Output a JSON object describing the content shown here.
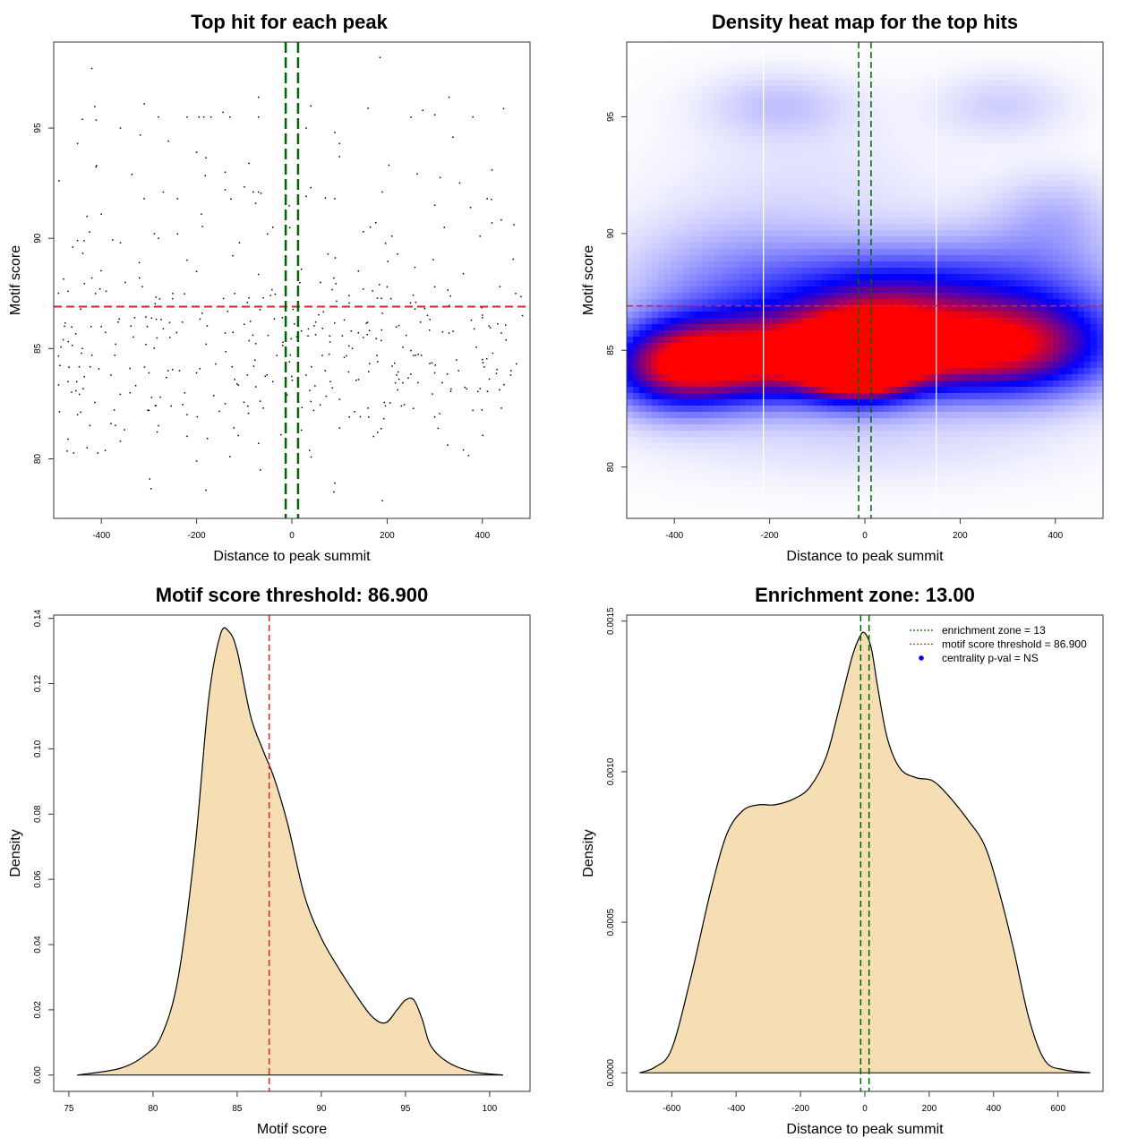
{
  "colors": {
    "threshold": "#dd2222",
    "zone": "#006400",
    "fill": "#f5deb3",
    "outline": "#000000",
    "heat_low": "#ffffff",
    "heat_mid": "#0000ff",
    "heat_high": "#ff0000"
  },
  "chart_data": [
    {
      "type": "scatter",
      "title": "Top hit for each peak",
      "xlabel": "Distance to peak summit",
      "ylabel": "Motif score",
      "xlim": [
        -500,
        500
      ],
      "ylim": [
        77.3,
        98.9
      ],
      "xticks": [
        "-400",
        "-200",
        "0",
        "200",
        "400"
      ],
      "yticks": [
        "80",
        "85",
        "90",
        "95"
      ],
      "hline": 86.9,
      "vlines": [
        -13,
        13
      ],
      "n_points": 470,
      "seed": 7,
      "points": [
        [
          -420,
          97.7
        ],
        [
          185,
          98.2
        ],
        [
          -310,
          96.1
        ],
        [
          -70,
          96.4
        ],
        [
          330,
          96.4
        ],
        [
          -440,
          95.4
        ],
        [
          -280,
          95.5
        ],
        [
          -220,
          95.5
        ],
        [
          -195,
          95.5
        ],
        [
          -185,
          95.5
        ],
        [
          -170,
          95.5
        ],
        [
          -130,
          95.5
        ],
        [
          -70,
          95.5
        ],
        [
          40,
          96.0
        ],
        [
          160,
          95.9
        ],
        [
          250,
          95.5
        ],
        [
          275,
          95.8
        ],
        [
          300,
          95.6
        ],
        [
          380,
          95.5
        ],
        [
          30,
          95.0
        ],
        [
          -450,
          94.3
        ],
        [
          -360,
          95.0
        ],
        [
          90,
          94.8
        ],
        [
          100,
          94.3
        ],
        [
          -410,
          93.3
        ],
        [
          -200,
          93.9
        ],
        [
          -140,
          93.0
        ],
        [
          -90,
          93.4
        ],
        [
          100,
          93.7
        ],
        [
          420,
          93.1
        ],
        [
          -270,
          92.1
        ],
        [
          -140,
          92.2
        ],
        [
          -70,
          92.1
        ],
        [
          40,
          92.3
        ],
        [
          190,
          92.1
        ],
        [
          -430,
          91.0
        ],
        [
          -400,
          91.1
        ],
        [
          -310,
          91.8
        ],
        [
          -240,
          91.8
        ],
        [
          -190,
          91.1
        ],
        [
          30,
          91.9
        ],
        [
          90,
          91.8
        ],
        [
          300,
          91.5
        ],
        [
          375,
          91.4
        ],
        [
          410,
          91.8
        ],
        [
          -460,
          89.6
        ],
        [
          -450,
          89.9
        ],
        [
          -360,
          89.8
        ],
        [
          -280,
          90.0
        ],
        [
          -240,
          90.2
        ],
        [
          -110,
          89.8
        ],
        [
          -40,
          90.5
        ],
        [
          150,
          90.3
        ],
        [
          210,
          90.1
        ],
        [
          320,
          90.5
        ],
        [
          395,
          90.1
        ],
        [
          420,
          90.7
        ],
        [
          -470,
          87.6
        ],
        [
          -420,
          88.2
        ],
        [
          -390,
          87.6
        ],
        [
          -350,
          88.0
        ],
        [
          -320,
          88.2
        ],
        [
          -250,
          87.5
        ],
        [
          -200,
          88.5
        ],
        [
          -120,
          87.5
        ],
        [
          -90,
          87.3
        ],
        [
          -60,
          87.3
        ],
        [
          20,
          88.6
        ],
        [
          60,
          88.0
        ],
        [
          120,
          87.4
        ],
        [
          150,
          87.7
        ],
        [
          200,
          87.8
        ],
        [
          260,
          87.1
        ],
        [
          300,
          87.8
        ],
        [
          360,
          88.4
        ],
        [
          470,
          87.5
        ],
        [
          -480,
          85.4
        ],
        [
          -440,
          85.0
        ],
        [
          -400,
          86.0
        ],
        [
          -370,
          85.2
        ],
        [
          -330,
          86.4
        ],
        [
          -270,
          85.9
        ],
        [
          -230,
          86.2
        ],
        [
          -180,
          85.2
        ],
        [
          -140,
          85.7
        ],
        [
          -100,
          86.1
        ],
        [
          -50,
          85.6
        ],
        [
          -20,
          86.4
        ],
        [
          20,
          85.8
        ],
        [
          50,
          86.2
        ],
        [
          80,
          85.3
        ],
        [
          110,
          86.3
        ],
        [
          150,
          85.5
        ],
        [
          190,
          86.6
        ],
        [
          240,
          85.6
        ],
        [
          270,
          86.2
        ],
        [
          330,
          85.7
        ],
        [
          400,
          86.4
        ],
        [
          440,
          85.7
        ],
        [
          -470,
          83.5
        ],
        [
          -420,
          84.7
        ],
        [
          -380,
          83.8
        ],
        [
          -340,
          84.1
        ],
        [
          -300,
          83.9
        ],
        [
          -260,
          84.0
        ],
        [
          -200,
          83.9
        ],
        [
          -160,
          84.3
        ],
        [
          -120,
          83.6
        ],
        [
          -80,
          84.2
        ],
        [
          -40,
          83.5
        ],
        [
          -5,
          84.4
        ],
        [
          30,
          83.8
        ],
        [
          70,
          84.0
        ],
        [
          110,
          84.6
        ],
        [
          140,
          83.6
        ],
        [
          180,
          84.4
        ],
        [
          220,
          83.8
        ],
        [
          260,
          84.7
        ],
        [
          300,
          83.9
        ],
        [
          350,
          84.0
        ],
        [
          400,
          84.5
        ],
        [
          460,
          84.0
        ],
        [
          -450,
          82.0
        ],
        [
          -380,
          81.6
        ],
        [
          -300,
          82.2
        ],
        [
          -220,
          82.0
        ],
        [
          -140,
          82.5
        ],
        [
          -60,
          82.3
        ],
        [
          -10,
          82.9
        ],
        [
          40,
          82.6
        ],
        [
          100,
          82.7
        ],
        [
          160,
          82.3
        ],
        [
          230,
          82.4
        ],
        [
          300,
          81.9
        ],
        [
          380,
          82.2
        ],
        [
          440,
          82.3
        ],
        [
          -430,
          80.5
        ],
        [
          -360,
          80.8
        ],
        [
          -280,
          81.5
        ],
        [
          -200,
          79.9
        ],
        [
          -130,
          80.1
        ],
        [
          -70,
          80.7
        ],
        [
          20,
          81.3
        ],
        [
          100,
          81.4
        ],
        [
          180,
          81.2
        ],
        [
          360,
          80.4
        ],
        [
          90,
          78.9
        ],
        [
          190,
          78.1
        ]
      ]
    },
    {
      "type": "heatmap",
      "title": "Density heat map for the top hits",
      "xlabel": "Distance to peak summit",
      "ylabel": "Motif score",
      "xlim": [
        -500,
        500
      ],
      "ylim": [
        77.8,
        98.2
      ],
      "xticks": [
        "-400",
        "-200",
        "0",
        "200",
        "400"
      ],
      "yticks": [
        "80",
        "85",
        "90",
        "95"
      ],
      "hline": 86.9,
      "vlines": [
        -13,
        13
      ],
      "white_vlines": [
        -213,
        150
      ],
      "kernels": [
        {
          "x": -420,
          "y": 84.3,
          "sx": 95,
          "sy": 1.3,
          "w": 0.6
        },
        {
          "x": -300,
          "y": 84.6,
          "sx": 110,
          "sy": 1.3,
          "w": 0.75
        },
        {
          "x": -110,
          "y": 84.8,
          "sx": 110,
          "sy": 1.3,
          "w": 0.75
        },
        {
          "x": -25,
          "y": 84.6,
          "sx": 70,
          "sy": 1.0,
          "w": 1.1
        },
        {
          "x": 40,
          "y": 84.9,
          "sx": 80,
          "sy": 1.3,
          "w": 0.55
        },
        {
          "x": 160,
          "y": 85.0,
          "sx": 130,
          "sy": 1.3,
          "w": 0.65
        },
        {
          "x": 350,
          "y": 85.2,
          "sx": 140,
          "sy": 1.5,
          "w": 0.7
        },
        {
          "x": 40,
          "y": 87.3,
          "sx": 150,
          "sy": 1.3,
          "w": 0.4
        },
        {
          "x": -250,
          "y": 87.8,
          "sx": 180,
          "sy": 1.8,
          "w": 0.25
        },
        {
          "x": 300,
          "y": 88.0,
          "sx": 180,
          "sy": 1.6,
          "w": 0.25
        },
        {
          "x": -180,
          "y": 95.5,
          "sx": 110,
          "sy": 1.0,
          "w": 0.12
        },
        {
          "x": 290,
          "y": 95.5,
          "sx": 100,
          "sy": 1.0,
          "w": 0.1
        },
        {
          "x": 400,
          "y": 90.8,
          "sx": 90,
          "sy": 1.3,
          "w": 0.13
        },
        {
          "x": -120,
          "y": 92.0,
          "sx": 220,
          "sy": 2.2,
          "w": 0.06
        },
        {
          "x": 0,
          "y": 81.0,
          "sx": 300,
          "sy": 1.3,
          "w": 0.07
        }
      ]
    },
    {
      "type": "area",
      "title": "Motif score threshold: 86.900",
      "xlabel": "Motif score",
      "ylabel": "Density",
      "xlim": [
        74.1,
        102.4
      ],
      "ylim": [
        -0.005,
        0.141
      ],
      "xticks": [
        "75",
        "80",
        "85",
        "90",
        "95",
        "100"
      ],
      "yticks": [
        "0.00",
        "0.02",
        "0.04",
        "0.06",
        "0.08",
        "0.10",
        "0.12",
        "0.14"
      ],
      "vline": 86.9,
      "x": [
        75.5,
        78,
        79.5,
        80.5,
        81.5,
        82.5,
        83.3,
        84,
        84.5,
        85,
        85.8,
        86.5,
        87.2,
        88,
        89,
        90,
        91,
        92,
        93,
        93.8,
        94.5,
        95,
        95.5,
        96,
        96.5,
        97.5,
        99,
        100.8
      ],
      "y": [
        0,
        0.002,
        0.006,
        0.012,
        0.03,
        0.07,
        0.115,
        0.135,
        0.136,
        0.13,
        0.11,
        0.1,
        0.091,
        0.077,
        0.055,
        0.042,
        0.033,
        0.025,
        0.018,
        0.016,
        0.02,
        0.023,
        0.023,
        0.017,
        0.009,
        0.004,
        0.001,
        0
      ]
    },
    {
      "type": "area",
      "title": "Enrichment zone: 13.00",
      "xlabel": "Distance to peak summit",
      "ylabel": "Density",
      "xlim": [
        -740,
        740
      ],
      "ylim": [
        -6.17e-05,
        0.00152
      ],
      "xticks": [
        "-600",
        "-400",
        "-200",
        "0",
        "200",
        "400",
        "600"
      ],
      "yticks": [
        "0.0000",
        "0.0005",
        "0.0010",
        "0.0015"
      ],
      "vlines": [
        -13,
        13
      ],
      "x": [
        -700,
        -650,
        -600,
        -540,
        -480,
        -430,
        -380,
        -330,
        -280,
        -220,
        -170,
        -120,
        -80,
        -40,
        -15,
        0,
        20,
        40,
        70,
        110,
        160,
        210,
        260,
        320,
        370,
        410,
        460,
        510,
        560,
        620,
        700
      ],
      "y": [
        0,
        2e-05,
        8e-05,
        0.00032,
        0.0006,
        0.00079,
        0.00087,
        0.00089,
        0.00089,
        0.00091,
        0.00095,
        0.00105,
        0.00121,
        0.00138,
        0.00145,
        0.00146,
        0.00141,
        0.00128,
        0.00111,
        0.00101,
        0.00098,
        0.00097,
        0.00092,
        0.00084,
        0.00076,
        0.00063,
        0.00042,
        0.00018,
        4e-05,
        1e-05,
        0
      ],
      "legend": [
        {
          "label": "enrichment zone = 13",
          "type": "line",
          "color": "#006400"
        },
        {
          "label": "motif score threshold = 86.900",
          "type": "line",
          "color": "#dd2222"
        },
        {
          "label": "centrality p-val = NS",
          "type": "dot",
          "color": "#0000ff"
        }
      ]
    }
  ]
}
